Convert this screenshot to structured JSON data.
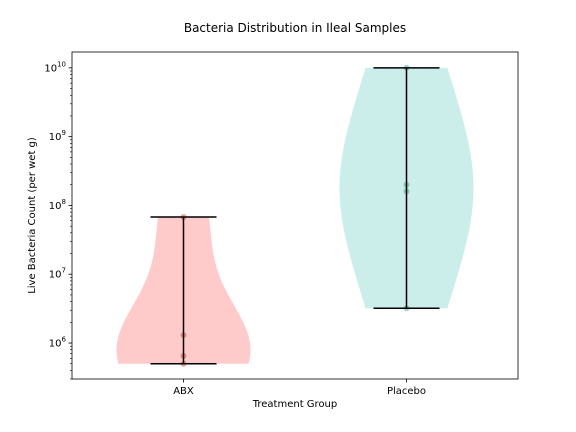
{
  "chart_data": {
    "type": "violin",
    "title": "Bacteria Distribution in Ileal Samples",
    "xlabel": "Treatment Group",
    "ylabel": "Live Bacteria Count (per wet g)",
    "yscale": "log",
    "ylim": [
      300000,
      17000000000
    ],
    "yticks": [
      {
        "value": 1000000,
        "base": "10",
        "exp": "6"
      },
      {
        "value": 10000000,
        "base": "10",
        "exp": "7"
      },
      {
        "value": 100000000,
        "base": "10",
        "exp": "8"
      },
      {
        "value": 1000000000,
        "base": "10",
        "exp": "9"
      },
      {
        "value": 10000000000,
        "base": "10",
        "exp": "10"
      }
    ],
    "categories": [
      "ABX",
      "Placebo"
    ],
    "series": [
      {
        "category": "ABX",
        "color": "#ff9896",
        "point_color": "#c0392b",
        "min": 500000,
        "max": 68000000,
        "points": [
          500000,
          650000,
          1300000,
          68000000
        ]
      },
      {
        "category": "Placebo",
        "color": "#98ded8",
        "point_color": "#2a9d8f",
        "min": 3200000,
        "max": 10000000000,
        "points": [
          3200000,
          160000000,
          200000000,
          10000000000
        ]
      }
    ],
    "grid": false,
    "legend": "none"
  }
}
